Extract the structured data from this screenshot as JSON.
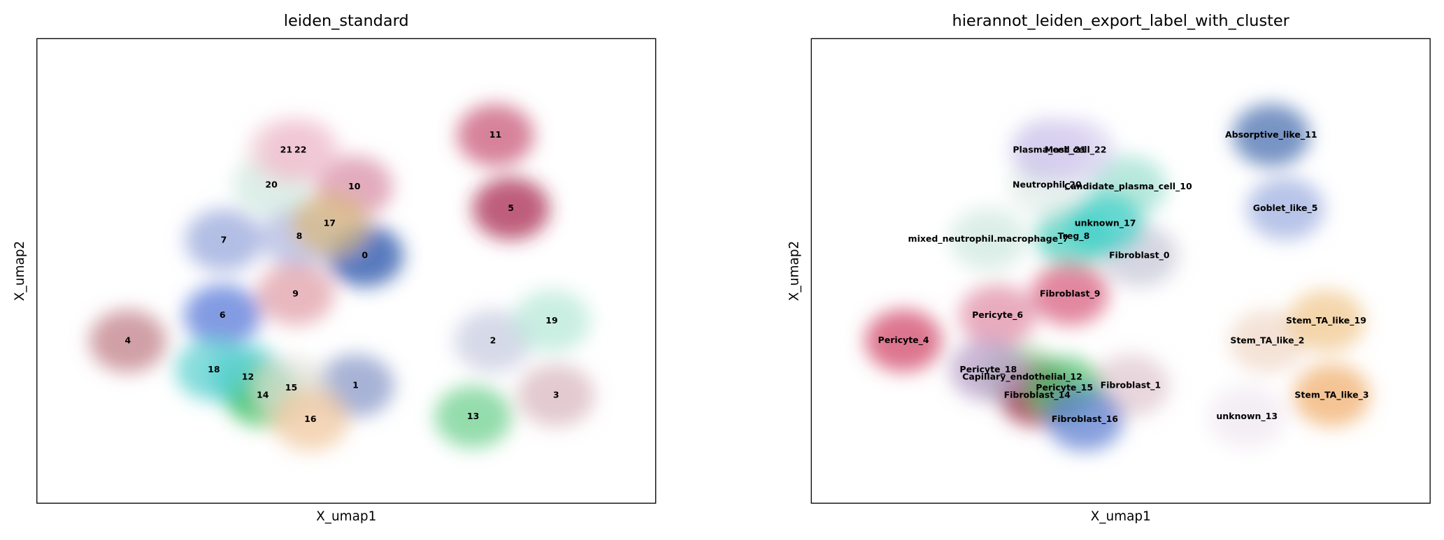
{
  "chart_data": [
    {
      "type": "scatter",
      "title": "leiden_standard",
      "xlabel": "X_umap1",
      "ylabel": "X_umap2",
      "xlim": [
        0,
        100
      ],
      "ylim": [
        0,
        100
      ],
      "labels": [
        "0",
        "1",
        "2",
        "3",
        "4",
        "5",
        "6",
        "7",
        "8",
        "9",
        "10",
        "11",
        "12",
        "13",
        "14",
        "15",
        "16",
        "17",
        "18",
        "19",
        "20",
        "21",
        "22"
      ],
      "x": [
        53.0,
        51.5,
        73.7,
        83.9,
        14.7,
        76.6,
        30.0,
        30.2,
        42.4,
        41.8,
        51.3,
        74.1,
        34.1,
        70.5,
        36.5,
        41.1,
        44.2,
        47.3,
        28.6,
        83.2,
        37.9,
        40.3,
        42.6
      ],
      "y": [
        53.3,
        25.3,
        34.9,
        23.2,
        34.9,
        63.4,
        40.4,
        56.6,
        57.4,
        45.0,
        68.1,
        79.2,
        27.1,
        18.6,
        23.2,
        24.8,
        18.0,
        60.2,
        28.7,
        39.2,
        68.5,
        76.0,
        76.0
      ],
      "colors": [
        "#1f4fa8",
        "#8a9ac8",
        "#c8cce0",
        "#d8b8c0",
        "#c08088",
        "#a8294f",
        "#5a7ad8",
        "#9aa8dc",
        "#b0b8e0",
        "#e0a0a8",
        "#d890a8",
        "#c85878",
        "#30c8c8",
        "#70d090",
        "#40c060",
        "#e0e0d8",
        "#f0c8a0",
        "#d8b880",
        "#60d0d0",
        "#b8e8d8",
        "#d0e8e0",
        "#f0d0d8",
        "#f0c0d0"
      ]
    },
    {
      "type": "scatter",
      "title": "hierannot_leiden_export_label_with_cluster",
      "xlabel": "X_umap1",
      "ylabel": "X_umap2",
      "xlim": [
        0,
        100
      ],
      "ylim": [
        0,
        100
      ],
      "labels": [
        "Fibroblast_0",
        "Fibroblast_1",
        "Stem_TA_like_2",
        "Stem_TA_like_3",
        "Pericyte_4",
        "Goblet_like_5",
        "Pericyte_6",
        "mixed_neutrophil.macrophage_7",
        "Treg_8",
        "Fibroblast_9",
        "Candidate_plasma_cell_10",
        "Absorptive_like_11",
        "Capillary_endothelial_12",
        "unknown_13",
        "Fibroblast_14",
        "Pericyte_15",
        "Fibroblast_16",
        "unknown_17",
        "Pericyte_18",
        "Stem_TA_like_19",
        "Neutrophil_20",
        "Plasma_cell_21",
        "Mast_cell_22"
      ],
      "x": [
        53.0,
        51.6,
        73.7,
        84.1,
        14.9,
        76.6,
        30.1,
        28.6,
        42.4,
        41.8,
        51.2,
        74.3,
        34.1,
        70.4,
        36.5,
        40.9,
        44.2,
        47.5,
        28.6,
        83.2,
        38.1,
        38.5,
        42.7
      ],
      "y": [
        53.3,
        25.3,
        34.9,
        23.2,
        35.0,
        63.4,
        40.4,
        56.8,
        57.4,
        45.0,
        68.1,
        79.2,
        27.1,
        18.6,
        23.2,
        24.8,
        18.0,
        60.2,
        28.7,
        39.2,
        68.5,
        76.0,
        76.0
      ],
      "colors": [
        "#c8c8d8",
        "#e0c8d0",
        "#f0d8c8",
        "#f0b070",
        "#d04868",
        "#a0b0e0",
        "#e090a8",
        "#d0e8e0",
        "#50d0c0",
        "#d86080",
        "#a0e0d0",
        "#4a70b0",
        "#90c890",
        "#f0e8f0",
        "#a03050",
        "#50c070",
        "#6080d0",
        "#40d0c8",
        "#b8a0c8",
        "#f0c890",
        "#e0ece8",
        "#c8c0e8",
        "#d8d0f0"
      ]
    }
  ]
}
